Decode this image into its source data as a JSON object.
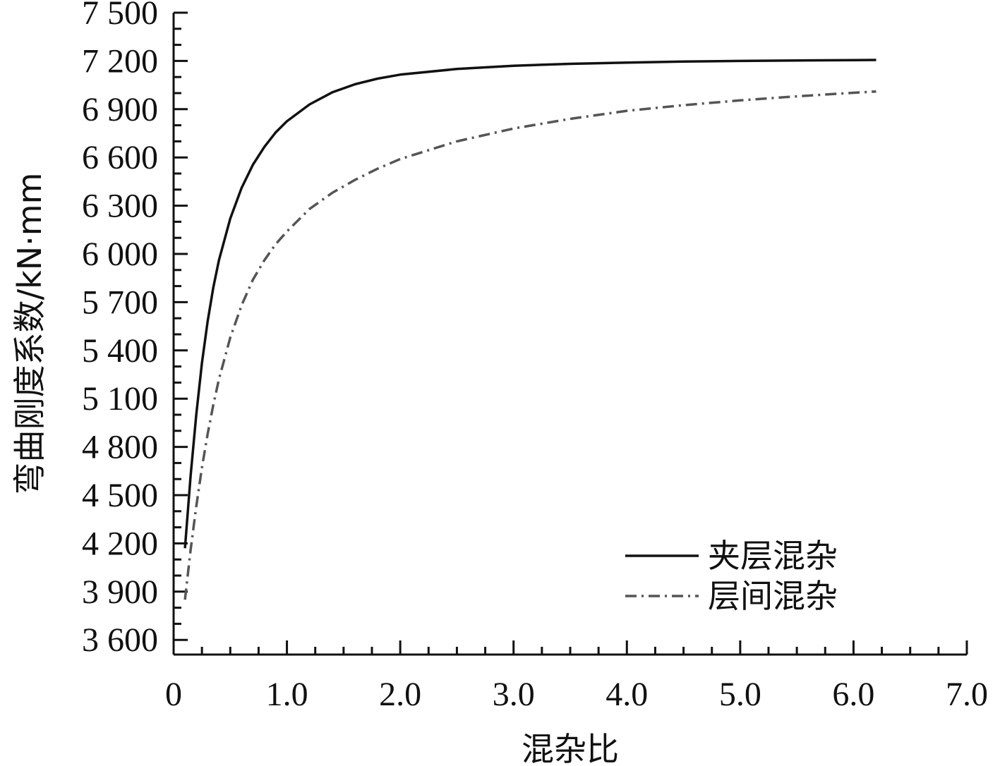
{
  "chart_data": {
    "type": "line",
    "title": "",
    "xlabel": "混杂比",
    "ylabel": "弯曲刚度系数/kN·mm",
    "xlim": [
      0,
      7.0
    ],
    "ylim": [
      3500,
      7500
    ],
    "x_ticks": [
      0,
      1.0,
      2.0,
      3.0,
      4.0,
      5.0,
      6.0,
      7.0
    ],
    "x_tick_labels": [
      "0",
      "1.0",
      "2.0",
      "3.0",
      "4.0",
      "5.0",
      "6.0",
      "7.0"
    ],
    "y_ticks": [
      3600,
      3900,
      4200,
      4500,
      4800,
      5100,
      5400,
      5700,
      6000,
      6300,
      6600,
      6900,
      7200,
      7500
    ],
    "y_tick_labels": [
      "3 600",
      "3 900",
      "4 200",
      "4 500",
      "4 800",
      "5 100",
      "5 400",
      "5 700",
      "6 000",
      "6 300",
      "6 600",
      "6 900",
      "7 200",
      "7 500"
    ],
    "grid": false,
    "legend_position": "bottom-right",
    "series": [
      {
        "name": "夹层混杂",
        "style": "solid",
        "color": "#111111",
        "x": [
          0.1,
          0.15,
          0.2,
          0.25,
          0.3,
          0.35,
          0.4,
          0.5,
          0.6,
          0.7,
          0.8,
          0.9,
          1.0,
          1.2,
          1.4,
          1.6,
          1.8,
          2.0,
          2.5,
          3.0,
          3.5,
          4.0,
          4.5,
          5.0,
          5.5,
          6.0,
          6.2
        ],
        "values": [
          4170,
          4620,
          5000,
          5320,
          5580,
          5790,
          5960,
          6220,
          6410,
          6555,
          6665,
          6755,
          6825,
          6930,
          7005,
          7055,
          7090,
          7115,
          7150,
          7170,
          7182,
          7190,
          7196,
          7200,
          7203,
          7205,
          7206
        ]
      },
      {
        "name": "层间混杂",
        "style": "dashdot",
        "color": "#555555",
        "x": [
          0.1,
          0.15,
          0.2,
          0.25,
          0.3,
          0.35,
          0.4,
          0.5,
          0.6,
          0.7,
          0.8,
          0.9,
          1.0,
          1.2,
          1.4,
          1.6,
          1.8,
          2.0,
          2.5,
          3.0,
          3.5,
          4.0,
          4.5,
          5.0,
          5.5,
          6.0,
          6.2
        ],
        "values": [
          3850,
          4160,
          4430,
          4670,
          4880,
          5060,
          5220,
          5480,
          5680,
          5840,
          5960,
          6060,
          6140,
          6280,
          6380,
          6460,
          6530,
          6590,
          6700,
          6780,
          6840,
          6890,
          6925,
          6955,
          6980,
          7002,
          7010
        ]
      }
    ]
  }
}
